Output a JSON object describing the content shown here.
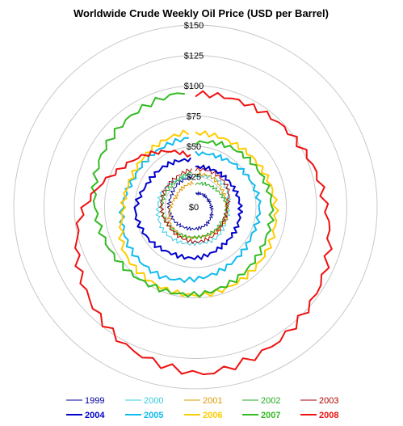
{
  "chart_data": {
    "type": "polar-line",
    "title": "Worldwide Crude Weekly Oil Price (USD per Barrel)",
    "radial_ticks": [
      "$0",
      "$25",
      "$50",
      "$75",
      "$100",
      "$125",
      "$150"
    ],
    "radial_range": [
      0,
      150
    ],
    "angle": "week of year, clockwise from top",
    "grid": true,
    "legend_position": "bottom",
    "series": [
      {
        "name": "1999",
        "color": "#000099",
        "bold": false,
        "values": [
          11,
          12,
          12,
          13,
          15,
          17,
          18,
          19,
          21,
          22,
          22,
          24,
          25
        ]
      },
      {
        "name": "2000",
        "color": "#33ccdd",
        "bold": false,
        "values": [
          25,
          28,
          30,
          27,
          28,
          31,
          30,
          32,
          33,
          31,
          30,
          27,
          26
        ]
      },
      {
        "name": "2001",
        "color": "#dd9900",
        "bold": false,
        "values": [
          27,
          28,
          26,
          26,
          27,
          26,
          25,
          27,
          25,
          21,
          18,
          19,
          20
        ]
      },
      {
        "name": "2002",
        "color": "#22aa22",
        "bold": false,
        "values": [
          19,
          21,
          23,
          26,
          25,
          25,
          25,
          26,
          27,
          28,
          27,
          26,
          29
        ]
      },
      {
        "name": "2003",
        "color": "#aa0000",
        "bold": false,
        "values": [
          31,
          32,
          31,
          26,
          26,
          28,
          29,
          28,
          27,
          28,
          29,
          29,
          31
        ]
      },
      {
        "name": "2004",
        "color": "#0000cc",
        "bold": true,
        "values": [
          33,
          34,
          35,
          37,
          38,
          39,
          42,
          43,
          47,
          50,
          44,
          42,
          39
        ]
      },
      {
        "name": "2005",
        "color": "#11bbee",
        "bold": true,
        "values": [
          44,
          46,
          50,
          53,
          52,
          55,
          59,
          64,
          64,
          61,
          56,
          56,
          57
        ]
      },
      {
        "name": "2006",
        "color": "#ffcc00",
        "bold": true,
        "values": [
          61,
          61,
          63,
          66,
          69,
          71,
          73,
          72,
          70,
          60,
          58,
          60,
          62
        ]
      },
      {
        "name": "2007",
        "color": "#33bb22",
        "bold": true,
        "values": [
          53,
          57,
          60,
          63,
          64,
          68,
          72,
          74,
          78,
          82,
          88,
          92,
          95
        ]
      },
      {
        "name": "2008",
        "color": "#ee1111",
        "bold": true,
        "values": [
          93,
          95,
          100,
          107,
          120,
          130,
          138,
          128,
          112,
          95,
          70,
          55,
          42
        ]
      }
    ]
  }
}
